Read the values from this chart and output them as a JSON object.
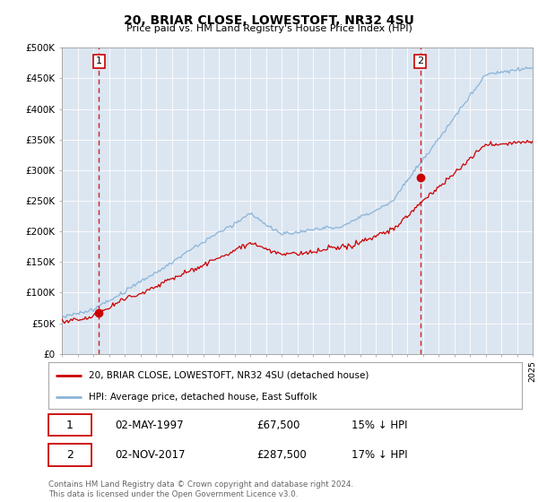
{
  "title": "20, BRIAR CLOSE, LOWESTOFT, NR32 4SU",
  "subtitle": "Price paid vs. HM Land Registry's House Price Index (HPI)",
  "ylim": [
    0,
    500000
  ],
  "yticks": [
    0,
    50000,
    100000,
    150000,
    200000,
    250000,
    300000,
    350000,
    400000,
    450000,
    500000
  ],
  "ytick_labels": [
    "£0",
    "£50K",
    "£100K",
    "£150K",
    "£200K",
    "£250K",
    "£300K",
    "£350K",
    "£400K",
    "£450K",
    "£500K"
  ],
  "plot_bg_color": "#dce6f1",
  "line_color_hpi": "#8ab4d8",
  "line_color_price": "#cc0000",
  "sale1_date_num": 1997.36,
  "sale1_price": 67500,
  "sale1_label": "1",
  "sale2_date_num": 2017.84,
  "sale2_price": 287500,
  "sale2_label": "2",
  "legend_line1": "20, BRIAR CLOSE, LOWESTOFT, NR32 4SU (detached house)",
  "legend_line2": "HPI: Average price, detached house, East Suffolk",
  "note1_label": "1",
  "note1_date": "02-MAY-1997",
  "note1_price": "£67,500",
  "note1_hpi": "15% ↓ HPI",
  "note2_label": "2",
  "note2_date": "02-NOV-2017",
  "note2_price": "£287,500",
  "note2_hpi": "17% ↓ HPI",
  "footer": "Contains HM Land Registry data © Crown copyright and database right 2024.\nThis data is licensed under the Open Government Licence v3.0."
}
